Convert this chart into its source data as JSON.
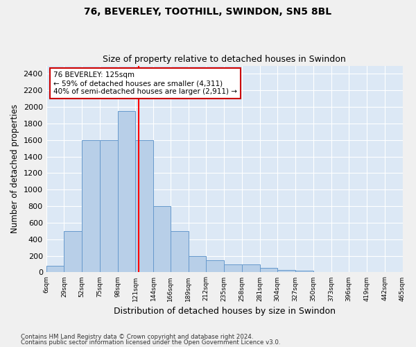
{
  "title1": "76, BEVERLEY, TOOTHILL, SWINDON, SN5 8BL",
  "title2": "Size of property relative to detached houses in Swindon",
  "xlabel": "Distribution of detached houses by size in Swindon",
  "ylabel": "Number of detached properties",
  "footnote1": "Contains HM Land Registry data © Crown copyright and database right 2024.",
  "footnote2": "Contains public sector information licensed under the Open Government Licence v3.0.",
  "bar_color": "#b8cfe8",
  "bar_edge_color": "#6699cc",
  "bg_color": "#dce8f5",
  "grid_color": "#ffffff",
  "fig_bg_color": "#f0f0f0",
  "red_line_x": 125,
  "annotation_text": "76 BEVERLEY: 125sqm\n← 59% of detached houses are smaller (4,311)\n40% of semi-detached houses are larger (2,911) →",
  "annotation_box_color": "#ffffff",
  "annotation_box_edge": "#cc0000",
  "bin_edges": [
    6,
    29,
    52,
    75,
    98,
    121,
    144,
    166,
    189,
    212,
    235,
    258,
    281,
    304,
    327,
    350,
    373,
    396,
    419,
    442,
    465
  ],
  "bar_heights": [
    75,
    500,
    1600,
    1600,
    1950,
    1600,
    800,
    500,
    200,
    150,
    100,
    100,
    50,
    30,
    20,
    0,
    0,
    0,
    0,
    0
  ],
  "ylim": [
    0,
    2500
  ],
  "yticks": [
    0,
    200,
    400,
    600,
    800,
    1000,
    1200,
    1400,
    1600,
    1800,
    2000,
    2200,
    2400
  ],
  "tick_labels": [
    "6sqm",
    "29sqm",
    "52sqm",
    "75sqm",
    "98sqm",
    "121sqm",
    "144sqm",
    "166sqm",
    "189sqm",
    "212sqm",
    "235sqm",
    "258sqm",
    "281sqm",
    "304sqm",
    "327sqm",
    "350sqm",
    "373sqm",
    "396sqm",
    "419sqm",
    "442sqm",
    "465sqm"
  ]
}
